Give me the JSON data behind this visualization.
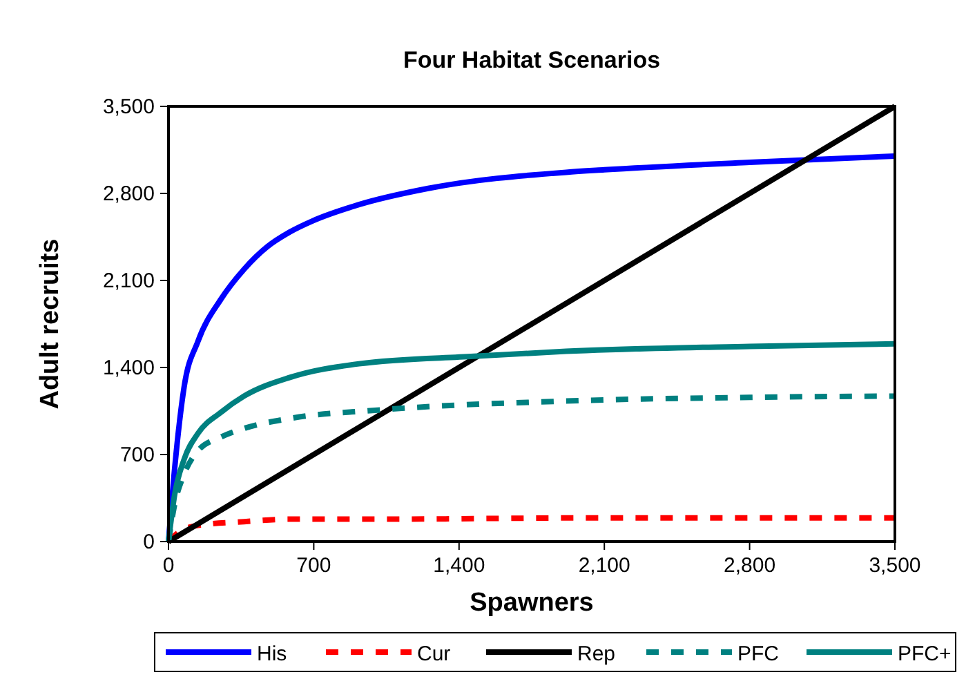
{
  "chart_data": {
    "type": "line",
    "title": "Four Habitat Scenarios",
    "xlabel": "Spawners",
    "ylabel": "Adult recruits",
    "xlim": [
      0,
      3500
    ],
    "ylim": [
      0,
      3500
    ],
    "xticks": [
      0,
      {
        "value": 700,
        "label": "700"
      },
      {
        "value": 1400,
        "label": "1,400"
      },
      {
        "value": 2100,
        "label": "2,100"
      },
      {
        "value": 2800,
        "label": "2,800"
      },
      {
        "value": 3500,
        "label": "3,500"
      }
    ],
    "yticks": [
      0,
      {
        "value": 700,
        "label": "700"
      },
      {
        "value": 1400,
        "label": "1,400"
      },
      {
        "value": 2100,
        "label": "2,100"
      },
      {
        "value": 2800,
        "label": "2,800"
      },
      {
        "value": 3500,
        "label": "3,500"
      }
    ],
    "legend": "bottom",
    "marker": "none",
    "series": [
      {
        "name": "His",
        "color": "#0000ff",
        "line_style": "solid",
        "x": [
          0,
          31,
          75,
          142,
          253,
          364,
          475,
          585,
          696,
          918,
          1251,
          1916,
          2100,
          2800,
          3500
        ],
        "values": [
          0,
          610,
          1240,
          1610,
          1950,
          2190,
          2370,
          2490,
          2580,
          2710,
          2840,
          2970,
          2990,
          3050,
          3100
        ]
      },
      {
        "name": "Cur",
        "color": "#ff0000",
        "line_style": "dashed",
        "x": [
          0,
          53,
          142,
          364,
          585,
          1000,
          2000,
          3500
        ],
        "values": [
          0,
          80,
          130,
          160,
          180,
          180,
          190,
          190
        ]
      },
      {
        "name": "Rep",
        "color": "#000000",
        "line_style": "solid",
        "x": [
          0,
          3500
        ],
        "values": [
          0,
          3500
        ]
      },
      {
        "name": "PFC",
        "color": "#008080",
        "line_style": "dashed",
        "x": [
          0,
          30,
          75,
          142,
          253,
          364,
          585,
          1029,
          1916,
          2800,
          3500
        ],
        "values": [
          0,
          300,
          540,
          730,
          840,
          910,
          990,
          1060,
          1130,
          1160,
          1170
        ]
      },
      {
        "name": "PFC+",
        "color": "#008080",
        "line_style": "solid",
        "x": [
          0,
          30,
          75,
          142,
          253,
          364,
          585,
          918,
          1472,
          1916,
          2800,
          3500
        ],
        "values": [
          0,
          380,
          660,
          870,
          1040,
          1170,
          1320,
          1430,
          1490,
          1530,
          1570,
          1590
        ]
      }
    ]
  }
}
